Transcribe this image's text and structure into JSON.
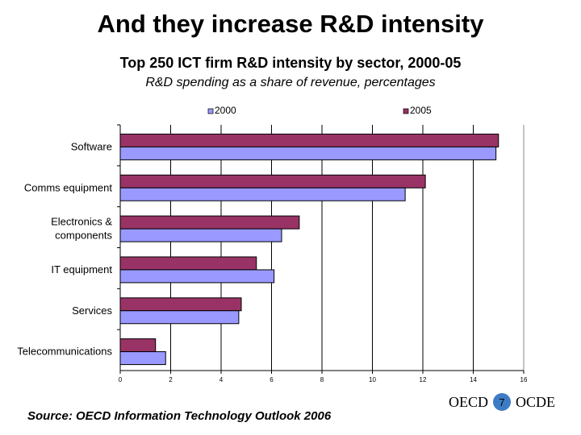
{
  "slide": {
    "title": "And they increase R&D intensity",
    "page_number": "7",
    "source": "Source: OECD Information Technology Outlook 2006",
    "logo_left": "OECD",
    "logo_right": "OCDE"
  },
  "chart_data": {
    "type": "bar",
    "orientation": "horizontal",
    "title": "Top 250 ICT firm R&D intensity by sector, 2000-05",
    "subtitle": "R&D spending as a share of revenue, percentages",
    "categories": [
      "Software",
      "Comms equipment",
      "Electronics & components",
      "IT equipment",
      "Services",
      "Telecommunications"
    ],
    "series": [
      {
        "name": "2000",
        "color": "#9999ff",
        "values": [
          14.9,
          11.3,
          6.4,
          6.1,
          4.7,
          1.8
        ]
      },
      {
        "name": "2005",
        "color": "#993366",
        "values": [
          15.0,
          12.1,
          7.1,
          5.4,
          4.8,
          1.4
        ]
      }
    ],
    "xlim": [
      0,
      16
    ],
    "xticks": [
      0,
      2,
      4,
      6,
      8,
      10,
      12,
      14,
      16
    ],
    "grid": true,
    "legend": "top"
  }
}
